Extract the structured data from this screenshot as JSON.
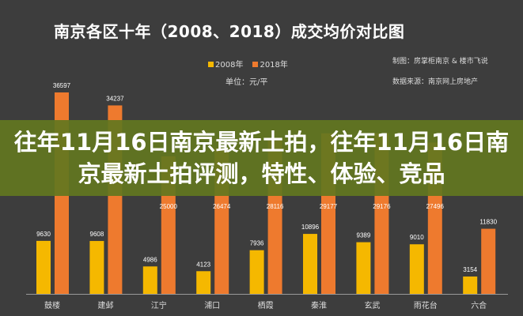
{
  "banner": {
    "text": "往年11月16日南京最新土拍，往年11月16日南京最新土拍评测，特性、体验、竞品"
  },
  "notes": {
    "credit": "制图：房掌柜南京 & 楼市飞说",
    "source": "数据来源：南京网上房地产"
  },
  "chart_data": {
    "type": "bar",
    "title": "南京各区十年（2008、2018）成交均价对比图",
    "unit": "单位：元/平",
    "legend_position": "top-center",
    "categories": [
      "鼓楼",
      "建邺",
      "江宁",
      "浦口",
      "栖霞",
      "秦淮",
      "玄武",
      "雨花台",
      "六合"
    ],
    "series": [
      {
        "name": "2008年",
        "color": "#f5b800",
        "values": [
          9630,
          9608,
          4986,
          4123,
          7936,
          10896,
          9389,
          9010,
          3154
        ]
      },
      {
        "name": "2018年",
        "color": "#ee7a2e",
        "values": [
          36597,
          34237,
          25000,
          26474,
          28116,
          29177,
          29176,
          27496,
          11830
        ]
      }
    ],
    "ylim": [
      0,
      40000
    ],
    "grid": false
  }
}
